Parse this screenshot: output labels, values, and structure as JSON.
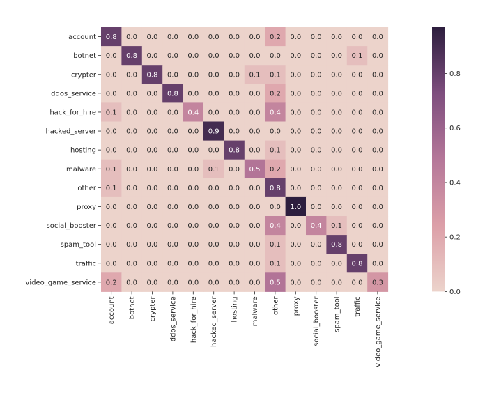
{
  "chart_data": {
    "type": "heatmap",
    "title": "",
    "xlabel": "",
    "ylabel": "",
    "rows": [
      "account",
      "botnet",
      "crypter",
      "ddos_service",
      "hack_for_hire",
      "hacked_server",
      "hosting",
      "malware",
      "other",
      "proxy",
      "social_booster",
      "spam_tool",
      "traffic",
      "video_game_service"
    ],
    "columns": [
      "account",
      "botnet",
      "crypter",
      "ddos_service",
      "hack_for_hire",
      "hacked_server",
      "hosting",
      "malware",
      "other",
      "proxy",
      "social_booster",
      "spam_tool",
      "traffic",
      "video_game_service"
    ],
    "values": [
      [
        0.8,
        0.0,
        0.0,
        0.0,
        0.0,
        0.0,
        0.0,
        0.0,
        0.2,
        0.0,
        0.0,
        0.0,
        0.0,
        0.0
      ],
      [
        0.0,
        0.8,
        0.0,
        0.0,
        0.0,
        0.0,
        0.0,
        0.0,
        0.0,
        0.0,
        0.0,
        0.0,
        0.1,
        0.0
      ],
      [
        0.0,
        0.0,
        0.8,
        0.0,
        0.0,
        0.0,
        0.0,
        0.1,
        0.1,
        0.0,
        0.0,
        0.0,
        0.0,
        0.0
      ],
      [
        0.0,
        0.0,
        0.0,
        0.8,
        0.0,
        0.0,
        0.0,
        0.0,
        0.2,
        0.0,
        0.0,
        0.0,
        0.0,
        0.0
      ],
      [
        0.1,
        0.0,
        0.0,
        0.0,
        0.4,
        0.0,
        0.0,
        0.0,
        0.4,
        0.0,
        0.0,
        0.0,
        0.0,
        0.0
      ],
      [
        0.0,
        0.0,
        0.0,
        0.0,
        0.0,
        0.9,
        0.0,
        0.0,
        0.0,
        0.0,
        0.0,
        0.0,
        0.0,
        0.0
      ],
      [
        0.0,
        0.0,
        0.0,
        0.0,
        0.0,
        0.0,
        0.8,
        0.0,
        0.1,
        0.0,
        0.0,
        0.0,
        0.0,
        0.0
      ],
      [
        0.1,
        0.0,
        0.0,
        0.0,
        0.0,
        0.1,
        0.0,
        0.5,
        0.2,
        0.0,
        0.0,
        0.0,
        0.0,
        0.0
      ],
      [
        0.1,
        0.0,
        0.0,
        0.0,
        0.0,
        0.0,
        0.0,
        0.0,
        0.8,
        0.0,
        0.0,
        0.0,
        0.0,
        0.0
      ],
      [
        0.0,
        0.0,
        0.0,
        0.0,
        0.0,
        0.0,
        0.0,
        0.0,
        0.0,
        1.0,
        0.0,
        0.0,
        0.0,
        0.0
      ],
      [
        0.0,
        0.0,
        0.0,
        0.0,
        0.0,
        0.0,
        0.0,
        0.0,
        0.4,
        0.0,
        0.4,
        0.1,
        0.0,
        0.0
      ],
      [
        0.0,
        0.0,
        0.0,
        0.0,
        0.0,
        0.0,
        0.0,
        0.0,
        0.1,
        0.0,
        0.0,
        0.8,
        0.0,
        0.0
      ],
      [
        0.0,
        0.0,
        0.0,
        0.0,
        0.0,
        0.0,
        0.0,
        0.0,
        0.1,
        0.0,
        0.0,
        0.0,
        0.8,
        0.0
      ],
      [
        0.2,
        0.0,
        0.0,
        0.0,
        0.0,
        0.0,
        0.0,
        0.0,
        0.5,
        0.0,
        0.0,
        0.0,
        0.0,
        0.3
      ]
    ],
    "colorbar": {
      "range": [
        0.0,
        0.97
      ],
      "ticks": [
        0.0,
        0.2,
        0.4,
        0.6,
        0.8
      ],
      "tick_labels": [
        "0.0",
        "0.2",
        "0.4",
        "0.6",
        "0.8"
      ]
    },
    "colormap": {
      "low": "#ecd3cb",
      "stops": [
        "#ecd3cb",
        "#dc9fa8",
        "#b57799",
        "#7e4e7e",
        "#2d1e3e"
      ],
      "label_light": "#ffffff",
      "label_dark": "#262626"
    },
    "value_format": "0.0",
    "grid": false,
    "legend": "colorbar right"
  }
}
